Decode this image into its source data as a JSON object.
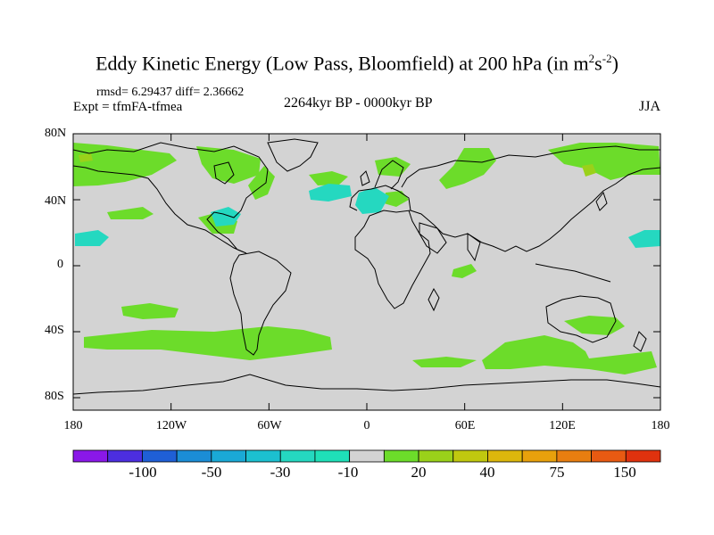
{
  "title": {
    "main": "Eddy Kinetic Energy (Low Pass, Bloomfield) at 200 hPa (in m",
    "sup1": "2",
    "mid": "s",
    "sup2": "-2",
    "end": ")"
  },
  "stats_line": "rmsd= 6.29437 diff= 2.36662",
  "expt_label": "Expt = tfmFA-tfmea",
  "period_label": "2264kyr BP - 0000kyr BP",
  "season_label": "JJA",
  "lat_ticks": [
    "80N",
    "40N",
    "0",
    "40S",
    "80S"
  ],
  "lon_ticks": [
    "180",
    "120W",
    "60W",
    "0",
    "60E",
    "120E",
    "180"
  ],
  "colorbar": {
    "labels": [
      "-100",
      "-50",
      "-30",
      "-10",
      "20",
      "40",
      "75",
      "150"
    ],
    "colors": [
      "#8a18e8",
      "#4c2ee0",
      "#1f5fd6",
      "#1b8dd6",
      "#1aa9d6",
      "#1cc0d0",
      "#25d8c0",
      "#1fe0b8",
      "#d3d3d3",
      "#6cdc2a",
      "#9ad11a",
      "#c0c80f",
      "#dcb70c",
      "#e8a10c",
      "#e87e10",
      "#e85a12",
      "#e0320e"
    ]
  },
  "map_colors": {
    "background": "#d3d3d3",
    "positive": "#6cdc2a",
    "negative": "#25d8c0",
    "strong": "#9ad11a",
    "coast": "#000000"
  }
}
